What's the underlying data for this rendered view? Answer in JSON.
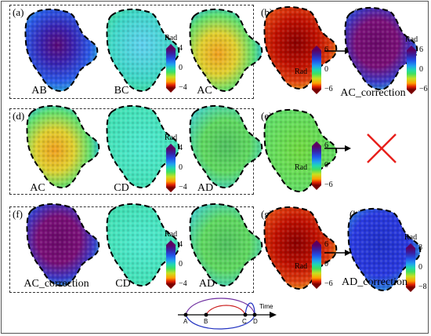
{
  "panels": {
    "a": {
      "label": "(a)",
      "maps": [
        "AB",
        "BC",
        "AC"
      ]
    },
    "b": {
      "label": "(b)"
    },
    "c": {
      "label": "(c)",
      "caption": "AC_correction"
    },
    "d": {
      "label": "(d)",
      "maps": [
        "AC",
        "CD",
        "AD"
      ]
    },
    "e": {
      "label": "(e)"
    },
    "f": {
      "label": "(f)",
      "maps": [
        "AC_correction",
        "CD",
        "AD"
      ]
    },
    "g": {
      "label": "(g)"
    },
    "h": {
      "label": "(h)",
      "caption": "AD_correction"
    }
  },
  "colorbars": {
    "unit": "Rad",
    "row1_group": {
      "max": "4",
      "mid": "0",
      "min": "−4"
    },
    "row1_b": {
      "max": "6",
      "mid": "0",
      "min": "−6"
    },
    "row1_c": {
      "max": "6",
      "mid": "0",
      "min": "−6"
    },
    "row2_group": {
      "max": "4",
      "mid": "0",
      "min": "−4"
    },
    "row2_e": {
      "max": "6",
      "mid": "0",
      "min": "−6"
    },
    "row3_group": {
      "max": "4",
      "mid": "0",
      "min": "−4"
    },
    "row3_g": {
      "max": "6",
      "mid": "0",
      "min": "−6"
    },
    "row3_h": {
      "max": "8",
      "mid": "0",
      "min": "−8"
    }
  },
  "timeline": {
    "axis_label": "Time",
    "points": [
      "A",
      "B",
      "C",
      "D"
    ]
  },
  "colors": {
    "ab": "#4a22a8",
    "bc": "#4cc8e8",
    "ac": "#f0a020",
    "purple_arc": "#7030a0",
    "red_arc": "#cc2020",
    "blue_arc": "#2030c0",
    "cross": "#e8201c"
  }
}
